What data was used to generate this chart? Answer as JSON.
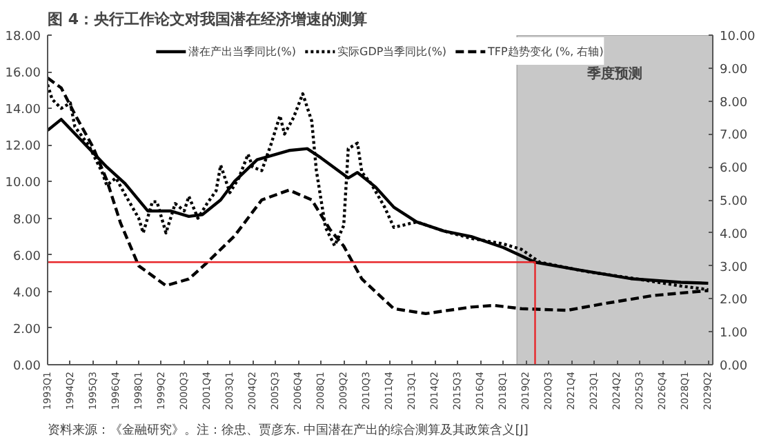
{
  "chart_data": {
    "type": "line",
    "title": "图 4：央行工作论文对我国潜在经济增速的测算",
    "annotations": [
      "资料来源：《金融研究》。注：徐忠、贾彦东. 中国潜在产出的综合测算及其政策含义[J]"
    ],
    "xlim": [
      "1993-01",
      "2029-07"
    ],
    "xticks": [
      {
        "value": "1993-01",
        "label": "1993Q1"
      },
      {
        "value": "1994-04",
        "label": "1994Q2"
      },
      {
        "value": "1995-07",
        "label": "1995Q3"
      },
      {
        "value": "1996-10",
        "label": "1996Q4"
      },
      {
        "value": "1998-01",
        "label": "1998Q1"
      },
      {
        "value": "1999-04",
        "label": "1999Q2"
      },
      {
        "value": "2000-07",
        "label": "2000Q3"
      },
      {
        "value": "2001-10",
        "label": "2001Q4"
      },
      {
        "value": "2003-01",
        "label": "2003Q1"
      },
      {
        "value": "2004-04",
        "label": "2004Q2"
      },
      {
        "value": "2005-07",
        "label": "2005Q3"
      },
      {
        "value": "2006-10",
        "label": "2006Q4"
      },
      {
        "value": "2008-01",
        "label": "2008Q1"
      },
      {
        "value": "2009-04",
        "label": "2009Q2"
      },
      {
        "value": "2010-07",
        "label": "2010Q3"
      },
      {
        "value": "2011-10",
        "label": "2011Q4"
      },
      {
        "value": "2013-01",
        "label": "2013Q1"
      },
      {
        "value": "2014-04",
        "label": "2014Q2"
      },
      {
        "value": "2015-07",
        "label": "2015Q3"
      },
      {
        "value": "2016-10",
        "label": "2016Q4"
      },
      {
        "value": "2018-01",
        "label": "2018Q1"
      },
      {
        "value": "2019-04",
        "label": "2019Q2"
      },
      {
        "value": "2020-07",
        "label": "2020Q3"
      },
      {
        "value": "2021-10",
        "label": "2021Q4"
      },
      {
        "value": "2023-01",
        "label": "2023Q1"
      },
      {
        "value": "2024-04",
        "label": "2024Q2"
      },
      {
        "value": "2025-07",
        "label": "2025Q3"
      },
      {
        "value": "2026-10",
        "label": "2026Q4"
      },
      {
        "value": "2028-01",
        "label": "2028Q1"
      },
      {
        "value": "2029-04",
        "label": "2029Q2"
      }
    ],
    "ylim": [
      0,
      18
    ],
    "yticks": [
      {
        "value": 0,
        "label": "0.00"
      },
      {
        "value": 2,
        "label": "2.00"
      },
      {
        "value": 4,
        "label": "4.00"
      },
      {
        "value": 6,
        "label": "6.00"
      },
      {
        "value": 8,
        "label": "8.00"
      },
      {
        "value": 10,
        "label": "10.00"
      },
      {
        "value": 12,
        "label": "12.00"
      },
      {
        "value": 14,
        "label": "14.00"
      },
      {
        "value": 16,
        "label": "16.00"
      },
      {
        "value": 18,
        "label": "18.00"
      }
    ],
    "y2lim": [
      0,
      10
    ],
    "y2ticks": [
      {
        "value": 0,
        "label": "0.00"
      },
      {
        "value": 1,
        "label": "1.00"
      },
      {
        "value": 2,
        "label": "2.00"
      },
      {
        "value": 3,
        "label": "3.00"
      },
      {
        "value": 4,
        "label": "4.00"
      },
      {
        "value": 5,
        "label": "5.00"
      },
      {
        "value": 6,
        "label": "6.00"
      },
      {
        "value": 7,
        "label": "7.00"
      },
      {
        "value": 8,
        "label": "8.00"
      },
      {
        "value": 9,
        "label": "9.00"
      },
      {
        "value": 10,
        "label": "10.00"
      }
    ],
    "grid": false,
    "legend": "top",
    "bands": [
      {
        "axis": "x",
        "from": "2018-10",
        "to": "2029-07",
        "label": "季度预测",
        "color": "#c8c8c8"
      }
    ],
    "series": [
      {
        "name": "潜在产出当季同比(%)",
        "color": "#000000",
        "line_style": "solid",
        "x": [
          "1993-01",
          "1993-10",
          "1995-01",
          "1996-04",
          "1997-04",
          "1998-07",
          "1999-10",
          "2000-10",
          "2001-07",
          "2002-07",
          "2003-04",
          "2004-07",
          "2006-04",
          "2007-04",
          "2008-01",
          "2009-07",
          "2010-01",
          "2011-01",
          "2012-01",
          "2013-04",
          "2014-10",
          "2016-04",
          "2018-01",
          "2019-10",
          "2022-01",
          "2025-01",
          "2027-10",
          "2029-04"
        ],
        "values": [
          12.8,
          13.4,
          12.1,
          10.8,
          9.9,
          8.4,
          8.4,
          8.1,
          8.2,
          9.0,
          10.0,
          11.2,
          11.7,
          11.8,
          11.3,
          10.2,
          10.5,
          9.7,
          8.6,
          7.8,
          7.3,
          7.0,
          6.4,
          5.6,
          5.2,
          4.7,
          4.5,
          4.45
        ]
      },
      {
        "name": "实际GDP当季同比(%)",
        "color": "#000000",
        "line_style": "dotted",
        "x": [
          "1993-01",
          "1993-04",
          "1993-10",
          "1994-04",
          "1994-07",
          "1995-04",
          "1996-01",
          "1996-04",
          "1996-10",
          "1997-04",
          "1998-01",
          "1998-04",
          "1998-10",
          "1999-01",
          "1999-07",
          "2000-01",
          "2000-07",
          "2000-10",
          "2001-04",
          "2001-10",
          "2002-04",
          "2002-07",
          "2003-01",
          "2003-07",
          "2004-01",
          "2004-04",
          "2004-10",
          "2005-04",
          "2005-10",
          "2006-01",
          "2006-07",
          "2007-01",
          "2007-07",
          "2007-10",
          "2008-04",
          "2008-10",
          "2009-04",
          "2009-07",
          "2010-01",
          "2010-04",
          "2010-10",
          "2011-07",
          "2012-01",
          "2013-04",
          "2014-10",
          "2016-04",
          "2018-01",
          "2019-01",
          "2020-01",
          "2022-07",
          "2025-04",
          "2027-10",
          "2029-04"
        ],
        "values": [
          15.3,
          14.5,
          14.0,
          14.3,
          13.0,
          12.0,
          10.5,
          9.8,
          10.2,
          9.3,
          8.0,
          7.2,
          8.9,
          8.9,
          7.2,
          8.8,
          8.4,
          9.2,
          8.0,
          8.8,
          9.5,
          10.9,
          9.4,
          10.2,
          11.5,
          10.8,
          10.6,
          12.0,
          13.6,
          12.6,
          13.5,
          14.8,
          13.3,
          10.6,
          7.5,
          6.5,
          7.6,
          11.8,
          12.1,
          10.5,
          9.9,
          8.6,
          7.5,
          7.8,
          7.3,
          6.9,
          6.6,
          6.3,
          5.6,
          5.1,
          4.7,
          4.3,
          4.1
        ]
      },
      {
        "name": "TFP趋势变化 (%, 右轴)",
        "color": "#000000",
        "line_style": "dashed",
        "axis": "y2",
        "x": [
          "1993-01",
          "1993-10",
          "1994-07",
          "1995-07",
          "1996-04",
          "1997-01",
          "1998-01",
          "1999-07",
          "2000-10",
          "2001-10",
          "2003-04",
          "2004-10",
          "2006-04",
          "2007-07",
          "2008-07",
          "2009-04",
          "2010-04",
          "2012-01",
          "2013-10",
          "2016-04",
          "2017-07",
          "2019-01",
          "2021-07",
          "2023-07",
          "2026-04",
          "2029-04"
        ],
        "values": [
          8.7,
          8.4,
          7.6,
          6.6,
          5.6,
          4.3,
          3.0,
          2.4,
          2.6,
          3.1,
          3.9,
          5.0,
          5.3,
          5.0,
          4.1,
          3.6,
          2.6,
          1.7,
          1.55,
          1.75,
          1.8,
          1.7,
          1.65,
          1.85,
          2.1,
          2.25
        ]
      },
      {
        "color": "#e8262a",
        "line_style": "solid",
        "x": [
          "1993-01",
          "2019-10",
          "2019-10"
        ],
        "values": [
          5.6,
          5.6,
          0
        ]
      }
    ]
  }
}
